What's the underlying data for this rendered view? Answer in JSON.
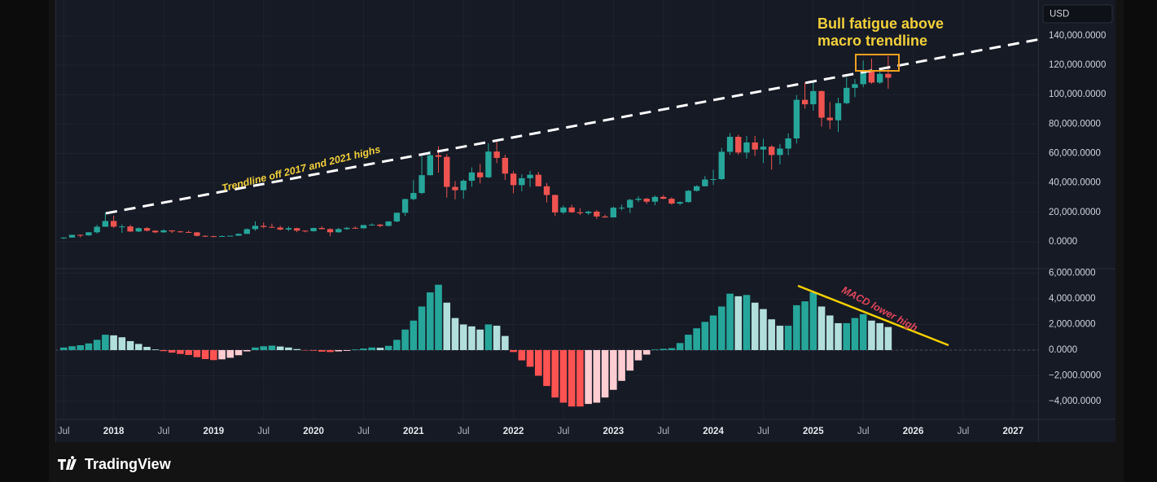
{
  "currency": "USD",
  "brand": "TradingView",
  "chart_data": [
    {
      "type": "candlestick",
      "trendline_label": "Trendline off 2017 and 2021 highs",
      "callout": [
        "Bull fatigue above",
        "macro trendline"
      ],
      "up_color": "#26a69a",
      "down_color": "#ef5350",
      "grid": true,
      "x": [
        "2017-07",
        "2017-08",
        "2017-09",
        "2017-10",
        "2017-11",
        "2017-12",
        "2018-01",
        "2018-02",
        "2018-03",
        "2018-04",
        "2018-05",
        "2018-06",
        "2018-07",
        "2018-08",
        "2018-09",
        "2018-10",
        "2018-11",
        "2018-12",
        "2019-01",
        "2019-02",
        "2019-03",
        "2019-04",
        "2019-05",
        "2019-06",
        "2019-07",
        "2019-08",
        "2019-09",
        "2019-10",
        "2019-11",
        "2019-12",
        "2020-01",
        "2020-02",
        "2020-03",
        "2020-04",
        "2020-05",
        "2020-06",
        "2020-07",
        "2020-08",
        "2020-09",
        "2020-10",
        "2020-11",
        "2020-12",
        "2021-01",
        "2021-02",
        "2021-03",
        "2021-04",
        "2021-05",
        "2021-06",
        "2021-07",
        "2021-08",
        "2021-09",
        "2021-10",
        "2021-11",
        "2021-12",
        "2022-01",
        "2022-02",
        "2022-03",
        "2022-04",
        "2022-05",
        "2022-06",
        "2022-07",
        "2022-08",
        "2022-09",
        "2022-10",
        "2022-11",
        "2022-12",
        "2023-01",
        "2023-02",
        "2023-03",
        "2023-04",
        "2023-05",
        "2023-06",
        "2023-07",
        "2023-08",
        "2023-09",
        "2023-10",
        "2023-11",
        "2023-12",
        "2024-01",
        "2024-02",
        "2024-03",
        "2024-04",
        "2024-05",
        "2024-06",
        "2024-07",
        "2024-08",
        "2024-09",
        "2024-10",
        "2024-11",
        "2024-12",
        "2025-01",
        "2025-02",
        "2025-03",
        "2025-04",
        "2025-05",
        "2025-06",
        "2025-07",
        "2025-08",
        "2025-09",
        "2025-10"
      ],
      "open": [
        2480,
        2870,
        4700,
        4340,
        6440,
        10200,
        14110,
        10240,
        10390,
        6970,
        9250,
        7500,
        6410,
        7730,
        7040,
        6620,
        6370,
        4020,
        3750,
        3460,
        3850,
        4100,
        5350,
        8570,
        10820,
        10090,
        9630,
        8290,
        9200,
        7570,
        7190,
        9350,
        8600,
        6440,
        8630,
        9450,
        9140,
        11350,
        11660,
        10780,
        13800,
        19700,
        28990,
        33140,
        45240,
        58800,
        57700,
        37300,
        35040,
        41460,
        47100,
        43800,
        61300,
        57000,
        46300,
        38480,
        43190,
        45540,
        37710,
        31790,
        19940,
        23300,
        20050,
        19420,
        20490,
        17170,
        16540,
        23140,
        23150,
        28480,
        29270,
        27220,
        30480,
        29230,
        25940,
        26970,
        34650,
        37720,
        42280,
        42580,
        61130,
        71330,
        60640,
        67490,
        62680,
        64620,
        58970,
        63330,
        70220,
        96450,
        93430,
        102400,
        84350,
        82550,
        94200,
        104600,
        107100,
        115800,
        108200,
        114100
      ],
      "high": [
        2950,
        4740,
        4980,
        6470,
        11500,
        19780,
        17710,
        11790,
        11560,
        9750,
        9940,
        7750,
        8470,
        7760,
        7410,
        7540,
        6550,
        4310,
        4110,
        4210,
        4110,
        5640,
        9090,
        13880,
        13130,
        12320,
        10900,
        10370,
        9510,
        7740,
        9550,
        10500,
        9190,
        9460,
        10080,
        10380,
        11440,
        12480,
        12060,
        14100,
        19860,
        29300,
        41950,
        58350,
        61780,
        64850,
        59600,
        41300,
        42400,
        50500,
        52900,
        67000,
        69000,
        59100,
        47990,
        45800,
        48200,
        47450,
        39900,
        31990,
        24670,
        25210,
        22800,
        21100,
        21480,
        18390,
        23960,
        25250,
        29190,
        31000,
        29840,
        31390,
        31800,
        30200,
        27480,
        35200,
        38420,
        44700,
        48970,
        63900,
        73800,
        72800,
        71980,
        71950,
        70000,
        65600,
        66500,
        73600,
        99650,
        108300,
        109350,
        102750,
        95000,
        97900,
        111900,
        110500,
        123200,
        124500,
        117900,
        126200
      ],
      "low": [
        1840,
        2690,
        2980,
        4110,
        5510,
        10900,
        9400,
        6050,
        6600,
        6570,
        7050,
        5830,
        6080,
        5880,
        6140,
        6190,
        3650,
        3160,
        3390,
        3390,
        3740,
        4090,
        5330,
        7510,
        9100,
        9400,
        7710,
        7300,
        6520,
        6430,
        6870,
        8450,
        3780,
        6150,
        8100,
        8900,
        8980,
        10960,
        9880,
        10380,
        13220,
        17570,
        28130,
        32300,
        45000,
        47000,
        30000,
        28800,
        29300,
        37330,
        39600,
        43300,
        53500,
        42000,
        32950,
        34320,
        37160,
        37600,
        26700,
        17570,
        18780,
        19600,
        18150,
        18200,
        15480,
        16300,
        16500,
        21350,
        19550,
        26940,
        25810,
        24800,
        28860,
        25160,
        24920,
        26560,
        34100,
        37620,
        38550,
        41880,
        59000,
        59100,
        56550,
        58400,
        53500,
        49000,
        52550,
        58900,
        66800,
        90500,
        89160,
        78170,
        76600,
        74500,
        93400,
        98200,
        105100,
        107300,
        107300,
        104000
      ],
      "close": [
        2870,
        4700,
        4340,
        6440,
        10200,
        14110,
        10240,
        10390,
        6970,
        9250,
        7500,
        6410,
        7730,
        7040,
        6620,
        6370,
        4020,
        3750,
        3460,
        3850,
        4100,
        5350,
        8570,
        10820,
        10090,
        9630,
        8290,
        9200,
        7570,
        7190,
        9350,
        8600,
        6440,
        8630,
        9450,
        9140,
        11350,
        11660,
        10780,
        13800,
        19700,
        28990,
        33140,
        45240,
        58800,
        57700,
        37300,
        35040,
        41460,
        47100,
        43800,
        61300,
        57000,
        46300,
        38480,
        43190,
        45540,
        37710,
        31790,
        19940,
        23300,
        20050,
        19420,
        20490,
        17170,
        16540,
        23140,
        23150,
        28480,
        29270,
        27220,
        30480,
        29230,
        25940,
        26970,
        34650,
        37720,
        42280,
        42580,
        61130,
        71330,
        60640,
        67490,
        62680,
        64620,
        58970,
        63330,
        70220,
        96450,
        93430,
        102400,
        84350,
        82550,
        94200,
        104600,
        107100,
        115800,
        108200,
        114100,
        111500
      ],
      "xlim": [
        "2017-06",
        "2027-04"
      ],
      "xticks": [
        {
          "value": "2017-07",
          "label": "Jul"
        },
        {
          "value": "2018-01",
          "label": "2018"
        },
        {
          "value": "2018-07",
          "label": "Jul"
        },
        {
          "value": "2019-01",
          "label": "2019"
        },
        {
          "value": "2019-07",
          "label": "Jul"
        },
        {
          "value": "2020-01",
          "label": "2020"
        },
        {
          "value": "2020-07",
          "label": "Jul"
        },
        {
          "value": "2021-01",
          "label": "2021"
        },
        {
          "value": "2021-07",
          "label": "Jul"
        },
        {
          "value": "2022-01",
          "label": "2022"
        },
        {
          "value": "2022-07",
          "label": "Jul"
        },
        {
          "value": "2023-01",
          "label": "2023"
        },
        {
          "value": "2023-07",
          "label": "Jul"
        },
        {
          "value": "2024-01",
          "label": "2024"
        },
        {
          "value": "2024-07",
          "label": "Jul"
        },
        {
          "value": "2025-01",
          "label": "2025"
        },
        {
          "value": "2025-07",
          "label": "Jul"
        },
        {
          "value": "2026-01",
          "label": "2026"
        },
        {
          "value": "2026-07",
          "label": "Jul"
        },
        {
          "value": "2027-01",
          "label": "2027"
        }
      ],
      "ylim": [
        -18300,
        164300
      ],
      "yticks": [
        {
          "value": 0,
          "label": "0.0000"
        },
        {
          "value": 20000,
          "label": "20,000.0000"
        },
        {
          "value": 40000,
          "label": "40,000.0000"
        },
        {
          "value": 60000,
          "label": "60,000.0000"
        },
        {
          "value": 80000,
          "label": "80,000.0000"
        },
        {
          "value": 100000,
          "label": "100,000.0000"
        },
        {
          "value": 120000,
          "label": "120,000.0000"
        },
        {
          "value": 140000,
          "label": "140,000.0000"
        }
      ]
    },
    {
      "type": "histogram",
      "annotation": "MACD lower high",
      "colors": {
        "rising_above": "#26a69a",
        "falling_above": "#b2dfdb",
        "falling_below": "#ff5252",
        "rising_below": "#ffcdd2"
      },
      "values": [
        200,
        300,
        380,
        520,
        800,
        1200,
        1150,
        1000,
        700,
        480,
        250,
        50,
        -80,
        -200,
        -300,
        -380,
        -550,
        -700,
        -780,
        -720,
        -600,
        -400,
        -100,
        200,
        300,
        350,
        280,
        200,
        80,
        -30,
        -50,
        -120,
        -150,
        -100,
        -60,
        50,
        120,
        200,
        180,
        330,
        800,
        1600,
        2300,
        3400,
        4500,
        5100,
        3700,
        2500,
        2000,
        1850,
        1600,
        2000,
        1900,
        1100,
        -150,
        -800,
        -1300,
        -2000,
        -2800,
        -3700,
        -4100,
        -4400,
        -4400,
        -4200,
        -4100,
        -3700,
        -3100,
        -2400,
        -1600,
        -800,
        -350,
        50,
        100,
        150,
        550,
        1200,
        1700,
        2200,
        2700,
        3400,
        4400,
        4200,
        4300,
        3700,
        3200,
        2400,
        1900,
        1900,
        3500,
        3800,
        4500,
        3400,
        2700,
        2100,
        2100,
        2500,
        2800,
        2300,
        2100,
        1800
      ],
      "ylim": [
        -5400,
        6350
      ],
      "yticks": [
        {
          "value": -4000,
          "label": "−4,000.0000"
        },
        {
          "value": -2000,
          "label": "−2,000.0000"
        },
        {
          "value": 0,
          "label": "0.0000"
        },
        {
          "value": 2000,
          "label": "2,000.0000"
        },
        {
          "value": 4000,
          "label": "4,000.0000"
        },
        {
          "value": 6000,
          "label": "6,000.0000"
        }
      ]
    }
  ]
}
